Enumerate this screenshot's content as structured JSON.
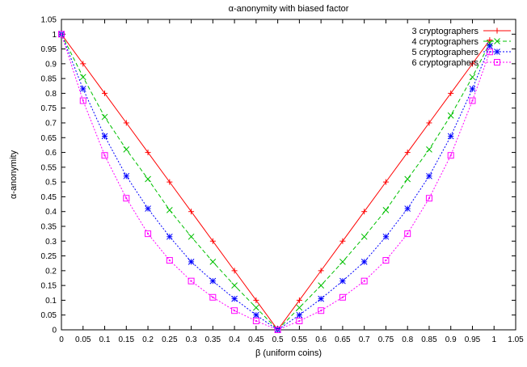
{
  "chart_data": {
    "type": "line",
    "title": "α-anonymity with biased factor",
    "xlabel": "β (uniform coins)",
    "ylabel": "α-anonymity",
    "xlim": [
      0,
      1.05
    ],
    "ylim": [
      0,
      1.05
    ],
    "xticks": [
      "0",
      "0.05",
      "0.1",
      "0.15",
      "0.2",
      "0.25",
      "0.3",
      "0.35",
      "0.4",
      "0.45",
      "0.5",
      "0.55",
      "0.6",
      "0.65",
      "0.7",
      "0.75",
      "0.8",
      "0.85",
      "0.9",
      "0.95",
      "1",
      "1.05"
    ],
    "yticks": [
      "0",
      "0.05",
      "0.1",
      "0.15",
      "0.2",
      "0.25",
      "0.3",
      "0.35",
      "0.4",
      "0.45",
      "0.5",
      "0.55",
      "0.6",
      "0.65",
      "0.7",
      "0.75",
      "0.8",
      "0.85",
      "0.9",
      "0.95",
      "1",
      "1.05"
    ],
    "grid": false,
    "legend_position": "top-right",
    "x": [
      0,
      0.05,
      0.1,
      0.15,
      0.2,
      0.25,
      0.3,
      0.35,
      0.4,
      0.45,
      0.5,
      0.55,
      0.6,
      0.65,
      0.7,
      0.75,
      0.8,
      0.85,
      0.9,
      0.95,
      0.99
    ],
    "series": [
      {
        "name": "3 cryptographers",
        "color": "#ff0000",
        "dash": "solid",
        "marker": "plus",
        "values": [
          1,
          0.9,
          0.8,
          0.7,
          0.6,
          0.5,
          0.4,
          0.3,
          0.2,
          0.1,
          0,
          0.1,
          0.2,
          0.3,
          0.4,
          0.5,
          0.6,
          0.7,
          0.8,
          0.9,
          0.98
        ]
      },
      {
        "name": "4 cryptographers",
        "color": "#00c000",
        "dash": "dashed",
        "marker": "cross",
        "values": [
          1,
          0.855,
          0.72,
          0.61,
          0.51,
          0.405,
          0.315,
          0.23,
          0.15,
          0.075,
          0,
          0.075,
          0.15,
          0.23,
          0.315,
          0.405,
          0.51,
          0.61,
          0.725,
          0.855,
          0.97
        ]
      },
      {
        "name": "5 cryptographers",
        "color": "#0000ff",
        "dash": "dotted",
        "marker": "star",
        "values": [
          1,
          0.815,
          0.655,
          0.52,
          0.41,
          0.315,
          0.23,
          0.165,
          0.105,
          0.05,
          0,
          0.05,
          0.105,
          0.165,
          0.23,
          0.315,
          0.41,
          0.52,
          0.655,
          0.815,
          0.96
        ]
      },
      {
        "name": "6 cryptographers",
        "color": "#ff00ff",
        "dash": "dotted",
        "marker": "square",
        "values": [
          1,
          0.775,
          0.59,
          0.445,
          0.325,
          0.235,
          0.165,
          0.11,
          0.065,
          0.03,
          0,
          0.03,
          0.065,
          0.11,
          0.165,
          0.235,
          0.325,
          0.445,
          0.59,
          0.775,
          0.94
        ]
      }
    ]
  }
}
